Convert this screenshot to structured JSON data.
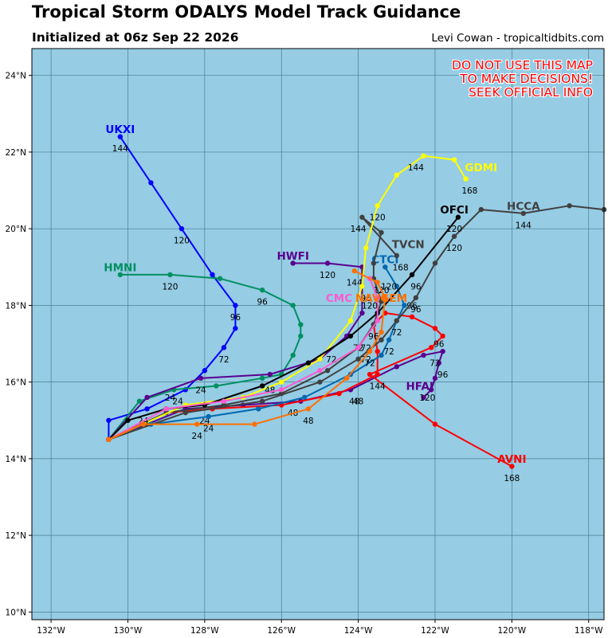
{
  "header": {
    "title": "Tropical Storm ODALYS Model Track Guidance",
    "subtitle": "Initialized at 06z Sep 22 2026",
    "credit": "Levi Cowan - tropicaltidbits.com"
  },
  "warning": [
    "DO NOT USE THIS MAP",
    "TO MAKE DECISIONS!",
    "SEEK OFFICIAL INFO"
  ],
  "chart_data": {
    "type": "map",
    "lon_range": [
      -132.5,
      -117.6
    ],
    "lat_range": [
      9.8,
      24.7
    ],
    "lon_ticks": [
      -132,
      -130,
      -128,
      -126,
      -124,
      -122,
      -120,
      -118
    ],
    "lat_ticks": [
      10,
      12,
      14,
      16,
      18,
      20,
      22,
      24
    ],
    "lon_tick_labels": [
      "132°W",
      "130°W",
      "128°W",
      "126°W",
      "124°W",
      "122°W",
      "120°W",
      "118°W"
    ],
    "lat_tick_labels": [
      "10°N",
      "12°N",
      "14°N",
      "16°N",
      "18°N",
      "20°N",
      "22°N",
      "24°N"
    ],
    "grid": true,
    "ocean_color": "#96cce4",
    "tracks": [
      {
        "name": "UKXI",
        "color": "#0000ff",
        "points": [
          [
            -130.5,
            14.5
          ],
          [
            -130.5,
            15.0
          ],
          [
            -129.5,
            15.3
          ],
          [
            -128.5,
            15.8
          ],
          [
            -128.0,
            16.3
          ],
          [
            -127.5,
            16.9
          ],
          [
            -127.2,
            17.4
          ],
          [
            -127.2,
            18.0
          ],
          [
            -127.8,
            18.8
          ],
          [
            -128.6,
            20.0
          ],
          [
            -129.4,
            21.2
          ],
          [
            -130.2,
            22.4
          ]
        ],
        "labels": [
          {
            "text": "24",
            "lon": -128.7,
            "lat": 15.5
          },
          {
            "text": "72",
            "lon": -127.5,
            "lat": 16.6
          },
          {
            "text": "96",
            "lon": -127.2,
            "lat": 17.7
          },
          {
            "text": "120",
            "lon": -128.6,
            "lat": 19.7
          },
          {
            "text": "144",
            "lon": -130.2,
            "lat": 22.1
          }
        ],
        "name_at": [
          -130.2,
          22.6
        ]
      },
      {
        "name": "HMNI",
        "color": "#009060",
        "points": [
          [
            -130.5,
            14.5
          ],
          [
            -129.7,
            15.5
          ],
          [
            -128.8,
            15.8
          ],
          [
            -127.7,
            15.9
          ],
          [
            -126.5,
            16.1
          ],
          [
            -126.0,
            16.2
          ],
          [
            -125.7,
            16.7
          ],
          [
            -125.5,
            17.2
          ],
          [
            -125.5,
            17.5
          ],
          [
            -125.7,
            18.0
          ],
          [
            -126.5,
            18.4
          ],
          [
            -127.6,
            18.7
          ],
          [
            -128.9,
            18.8
          ],
          [
            -130.2,
            18.8
          ]
        ],
        "labels": [
          {
            "text": "24",
            "lon": -128.9,
            "lat": 15.6
          },
          {
            "text": "96",
            "lon": -126.5,
            "lat": 18.1
          },
          {
            "text": "120",
            "lon": -128.9,
            "lat": 18.5
          }
        ],
        "name_at": [
          -130.2,
          19.0
        ]
      },
      {
        "name": "HWFI",
        "color": "#5a0090",
        "points": [
          [
            -130.5,
            14.5
          ],
          [
            -129.5,
            15.6
          ],
          [
            -128.1,
            16.1
          ],
          [
            -126.3,
            16.2
          ],
          [
            -125.0,
            16.6
          ],
          [
            -124.3,
            17.2
          ],
          [
            -123.9,
            17.8
          ],
          [
            -123.9,
            18.5
          ],
          [
            -123.9,
            19.0
          ],
          [
            -124.8,
            19.1
          ],
          [
            -125.7,
            19.1
          ]
        ],
        "labels": [
          {
            "text": "24",
            "lon": -128.1,
            "lat": 15.8
          },
          {
            "text": "72",
            "lon": -124.7,
            "lat": 16.6
          },
          {
            "text": "120",
            "lon": -124.8,
            "lat": 18.8
          },
          {
            "text": "144",
            "lon": -124.1,
            "lat": 18.6
          }
        ],
        "name_at": [
          -125.7,
          19.3
        ]
      },
      {
        "name": "HFAI",
        "color": "#5a0090",
        "points": [
          [
            -130.5,
            14.5
          ],
          [
            -128.5,
            15.3
          ],
          [
            -127.0,
            15.4
          ],
          [
            -125.5,
            15.5
          ],
          [
            -124.2,
            15.8
          ],
          [
            -123.0,
            16.4
          ],
          [
            -122.3,
            16.7
          ],
          [
            -121.8,
            16.8
          ],
          [
            -121.9,
            16.5
          ],
          [
            -122.0,
            16.1
          ],
          [
            -122.1,
            15.8
          ],
          [
            -122.3,
            15.6
          ]
        ],
        "labels": [
          {
            "text": "48",
            "lon": -124.0,
            "lat": 15.5
          },
          {
            "text": "72",
            "lon": -122.0,
            "lat": 16.5
          },
          {
            "text": "96",
            "lon": -121.8,
            "lat": 16.2
          },
          {
            "text": "120",
            "lon": -122.2,
            "lat": 15.6
          }
        ],
        "name_at": [
          -122.4,
          15.9
        ]
      },
      {
        "name": "AVNI",
        "color": "#ff0000",
        "points": [
          [
            -130.5,
            14.5
          ],
          [
            -129.0,
            15.2
          ],
          [
            -127.8,
            15.3
          ],
          [
            -126.0,
            15.4
          ],
          [
            -124.5,
            15.7
          ],
          [
            -123.5,
            16.2
          ],
          [
            -123.5,
            16.8
          ],
          [
            -123.6,
            17.5
          ],
          [
            -123.3,
            17.8
          ],
          [
            -122.6,
            17.7
          ],
          [
            -122.0,
            17.4
          ],
          [
            -121.8,
            17.2
          ],
          [
            -122.1,
            16.9
          ],
          [
            -123.7,
            16.2
          ],
          [
            -122.0,
            14.9
          ],
          [
            -120.0,
            13.8
          ]
        ],
        "labels": [
          {
            "text": "24",
            "lon": -128.0,
            "lat": 15.0
          },
          {
            "text": "48",
            "lon": -125.7,
            "lat": 15.2
          },
          {
            "text": "96",
            "lon": -121.9,
            "lat": 17.0
          },
          {
            "text": "144",
            "lon": -123.5,
            "lat": 15.9
          },
          {
            "text": "168",
            "lon": -120.0,
            "lat": 13.5
          }
        ],
        "name_at": [
          -120.0,
          14.0
        ]
      },
      {
        "name": "CTCI",
        "color": "#0068b0",
        "points": [
          [
            -130.5,
            14.5
          ],
          [
            -129.4,
            14.9
          ],
          [
            -127.9,
            15.1
          ],
          [
            -126.6,
            15.3
          ],
          [
            -125.4,
            15.6
          ],
          [
            -124.2,
            16.2
          ],
          [
            -123.4,
            16.7
          ],
          [
            -123.2,
            17.1
          ],
          [
            -123.0,
            17.6
          ],
          [
            -122.8,
            18.0
          ],
          [
            -123.0,
            18.5
          ],
          [
            -123.3,
            19.0
          ]
        ],
        "labels": [
          {
            "text": "24",
            "lon": -127.9,
            "lat": 14.8
          },
          {
            "text": "48",
            "lon": -124.1,
            "lat": 15.5
          },
          {
            "text": "72",
            "lon": -123.2,
            "lat": 16.8
          },
          {
            "text": "96",
            "lon": -122.6,
            "lat": 18.0
          }
        ],
        "name_at": [
          -123.3,
          19.2
        ]
      },
      {
        "name": "HCCA",
        "color": "#404040",
        "points": [
          [
            -130.5,
            14.5
          ],
          [
            -128.5,
            15.2
          ],
          [
            -126.5,
            15.5
          ],
          [
            -125.0,
            16.0
          ],
          [
            -124.0,
            16.6
          ],
          [
            -123.4,
            17.1
          ],
          [
            -123.0,
            17.6
          ],
          [
            -122.5,
            18.2
          ],
          [
            -122.0,
            19.1
          ],
          [
            -121.5,
            19.8
          ],
          [
            -120.8,
            20.5
          ],
          [
            -119.7,
            20.4
          ],
          [
            -118.5,
            20.6
          ],
          [
            -117.6,
            20.5
          ]
        ],
        "labels": [
          {
            "text": "72",
            "lon": -123.0,
            "lat": 17.3
          },
          {
            "text": "96",
            "lon": -122.5,
            "lat": 17.9
          },
          {
            "text": "120",
            "lon": -121.5,
            "lat": 19.5
          },
          {
            "text": "144",
            "lon": -119.7,
            "lat": 20.1
          }
        ],
        "name_at": [
          -119.7,
          20.6
        ]
      },
      {
        "name": "TVCN",
        "color": "#404040",
        "points": [
          [
            -130.5,
            14.5
          ],
          [
            -129.0,
            15.2
          ],
          [
            -127.5,
            15.4
          ],
          [
            -126.0,
            15.7
          ],
          [
            -124.8,
            16.3
          ],
          [
            -124.0,
            16.9
          ],
          [
            -123.6,
            17.5
          ],
          [
            -123.4,
            18.1
          ],
          [
            -123.6,
            18.7
          ],
          [
            -123.6,
            19.1
          ],
          [
            -123.4,
            19.9
          ],
          [
            -123.9,
            20.3
          ],
          [
            -123.0,
            19.3
          ]
        ],
        "labels": [
          {
            "text": "72",
            "lon": -123.8,
            "lat": 16.6
          },
          {
            "text": "96",
            "lon": -123.6,
            "lat": 17.2
          },
          {
            "text": "120",
            "lon": -123.4,
            "lat": 18.4
          },
          {
            "text": "144",
            "lon": -124.0,
            "lat": 20.0
          },
          {
            "text": "168",
            "lon": -122.9,
            "lat": 19.0
          }
        ],
        "name_at": [
          -122.7,
          19.6
        ]
      },
      {
        "name": "GDMI",
        "color": "#ffff00",
        "points": [
          [
            -130.5,
            14.5
          ],
          [
            -128.5,
            15.4
          ],
          [
            -127.0,
            15.6
          ],
          [
            -126.0,
            16.0
          ],
          [
            -125.0,
            16.6
          ],
          [
            -124.2,
            17.6
          ],
          [
            -123.9,
            18.5
          ],
          [
            -123.8,
            19.5
          ],
          [
            -123.5,
            20.6
          ],
          [
            -123.0,
            21.4
          ],
          [
            -122.3,
            21.9
          ],
          [
            -121.5,
            21.8
          ],
          [
            -121.2,
            21.3
          ]
        ],
        "labels": [
          {
            "text": "120",
            "lon": -123.5,
            "lat": 20.3
          },
          {
            "text": "144",
            "lon": -122.5,
            "lat": 21.6
          },
          {
            "text": "168",
            "lon": -121.1,
            "lat": 21.0
          }
        ],
        "name_at": [
          -120.8,
          21.6
        ]
      },
      {
        "name": "OFCI",
        "color": "#000000",
        "points": [
          [
            -130.5,
            14.5
          ],
          [
            -130.0,
            15.0
          ],
          [
            -129.0,
            15.3
          ],
          [
            -128.0,
            15.4
          ],
          [
            -126.5,
            15.9
          ],
          [
            -125.3,
            16.5
          ],
          [
            -124.2,
            17.2
          ],
          [
            -123.5,
            17.8
          ],
          [
            -122.6,
            18.8
          ],
          [
            -121.4,
            20.3
          ]
        ],
        "labels": [
          {
            "text": "24",
            "lon": -129.6,
            "lat": 15.0
          },
          {
            "text": "48",
            "lon": -126.3,
            "lat": 15.8
          },
          {
            "text": "72",
            "lon": -124.0,
            "lat": 16.9
          },
          {
            "text": "96",
            "lon": -122.5,
            "lat": 18.5
          },
          {
            "text": "120",
            "lon": -121.5,
            "lat": 20.0
          }
        ],
        "name_at": [
          -121.5,
          20.5
        ]
      },
      {
        "name": "CMC",
        "color": "#ff5ad0",
        "points": [
          [
            -130.5,
            14.5
          ],
          [
            -129.0,
            15.3
          ],
          [
            -127.5,
            15.5
          ],
          [
            -126.0,
            15.8
          ],
          [
            -125.0,
            16.3
          ],
          [
            -124.0,
            16.9
          ],
          [
            -123.5,
            17.6
          ],
          [
            -123.5,
            18.2
          ],
          [
            -123.7,
            18.7
          ]
        ],
        "labels": [
          {
            "text": "72",
            "lon": -123.8,
            "lat": 16.9
          },
          {
            "text": "120",
            "lon": -123.7,
            "lat": 18.0
          }
        ],
        "name_at": [
          -124.5,
          18.2
        ]
      },
      {
        "name": "NAVGEM",
        "color": "#ff7000",
        "points": [
          [
            -130.5,
            14.5
          ],
          [
            -129.6,
            14.9
          ],
          [
            -128.2,
            14.9
          ],
          [
            -126.7,
            14.9
          ],
          [
            -125.3,
            15.3
          ],
          [
            -124.3,
            16.1
          ],
          [
            -123.7,
            16.8
          ],
          [
            -123.4,
            17.3
          ],
          [
            -123.3,
            18.2
          ],
          [
            -123.5,
            18.6
          ],
          [
            -124.1,
            18.9
          ]
        ],
        "labels": [
          {
            "text": "24",
            "lon": -128.2,
            "lat": 14.6
          },
          {
            "text": "48",
            "lon": -125.3,
            "lat": 15.0
          },
          {
            "text": "72",
            "lon": -123.7,
            "lat": 16.5
          },
          {
            "text": "96",
            "lon": -123.8,
            "lat": 18.2
          },
          {
            "text": "120",
            "lon": -123.2,
            "lat": 18.5
          }
        ],
        "name_at": [
          -123.4,
          18.2
        ]
      }
    ]
  }
}
